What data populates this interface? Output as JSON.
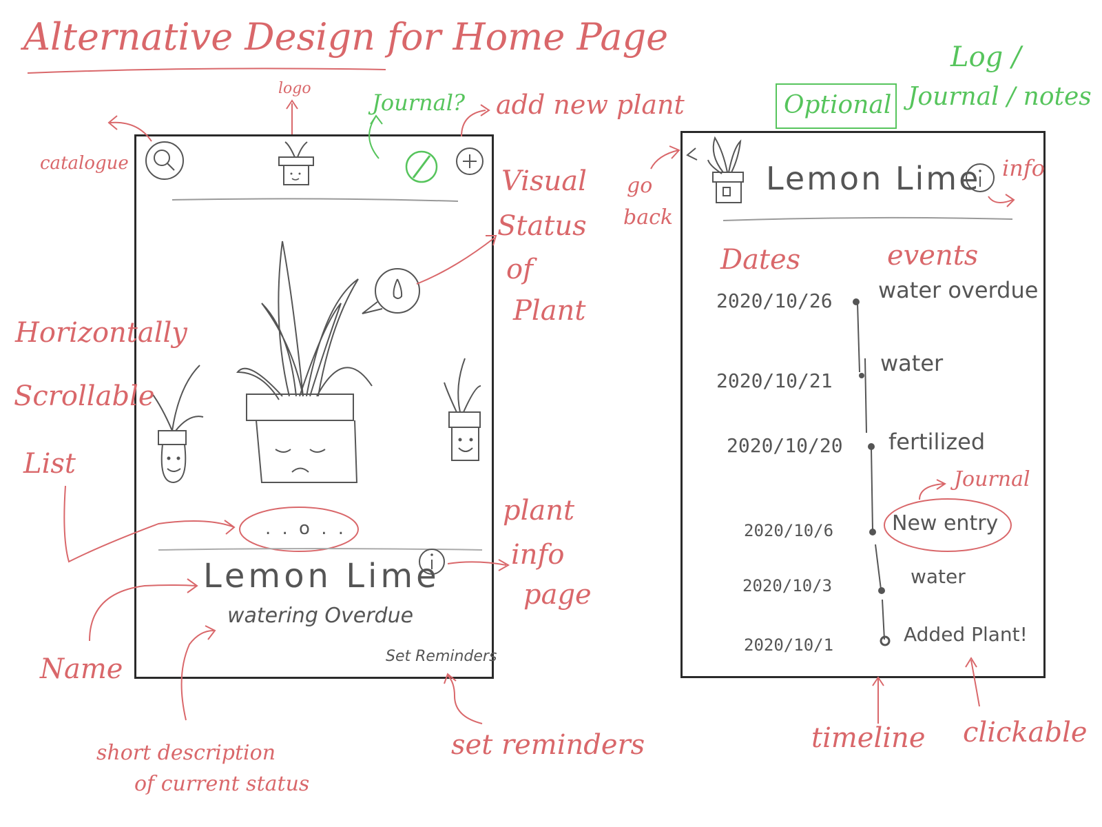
{
  "title": "Alternative Design for Home Page",
  "annotations": {
    "logo": "logo",
    "journal_q": "Journal?",
    "add_new_plant": "add new plant",
    "catalogue": "catalogue",
    "visual_status": [
      "Visual",
      "Status",
      "of",
      "Plant"
    ],
    "horizontally_scrollable": [
      "Horizontally",
      "Scrollable",
      "List"
    ],
    "plant_info_page": [
      "plant",
      "info",
      "page"
    ],
    "name": "Name",
    "short_description": [
      "short description",
      "of current status"
    ],
    "set_reminders": "set reminders",
    "log": "Log /",
    "optional": "Optional",
    "journal_notes": "Journal / notes",
    "go_back": [
      "go",
      "back"
    ],
    "info": "info",
    "journal": "Journal",
    "timeline": "timeline",
    "clickable": "clickable"
  },
  "home_screen": {
    "plant_name": "Lemon Lime",
    "status": "watering Overdue",
    "set_reminders_label": "Set Reminders",
    "carousel_dots": ". . o . ."
  },
  "log_screen": {
    "plant_name": "Lemon Lime",
    "dates_header": "Dates",
    "events_header": "events",
    "entries": [
      {
        "date": "2020/10/26",
        "event": "water overdue"
      },
      {
        "date": "2020/10/21",
        "event": "water"
      },
      {
        "date": "2020/10/20",
        "event": "fertilized"
      },
      {
        "date": "2020/10/6",
        "event": "New entry"
      },
      {
        "date": "2020/10/3",
        "event": "water"
      },
      {
        "date": "2020/10/1",
        "event": "Added Plant!"
      }
    ]
  },
  "colors": {
    "annotation_red": "#d9676a",
    "annotation_green": "#56c45c",
    "pencil": "#555555",
    "frame": "#2a2a2a"
  }
}
